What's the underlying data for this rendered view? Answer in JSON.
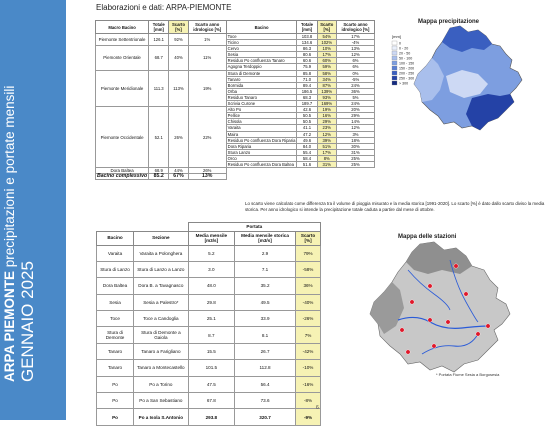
{
  "sidebar": {
    "org": "ARPA PIEMONTE",
    "subtitle": " precipitazioni e portate mensili",
    "month": "GENNAIO 2025",
    "bg_color": "#4a89c8"
  },
  "header": {
    "text": "Elaborazioni e dati: ARPA-PIEMONTE"
  },
  "table1": {
    "headers": [
      "Macro Bacino",
      "Totale [mm]",
      "Scarto [%]",
      "Scarto anno idrologico [%]",
      "Bacino",
      "Totale [mm]",
      "Scarto [%]",
      "Scarto anno idrologico [%]"
    ],
    "macros": [
      {
        "name": "Piemonte Settentrionale",
        "total": "126.1",
        "scarto": "92%",
        "anno": "1%"
      },
      {
        "name": "Piemonte Orientale",
        "total": "68.7",
        "scarto": "40%",
        "anno": "11%"
      },
      {
        "name": "Piemonte Meridionale",
        "total": "111.3",
        "scarto": "113%",
        "anno": "19%"
      },
      {
        "name": "Piemonte Occidentale",
        "total": "52.1",
        "scarto": "26%",
        "anno": "22%"
      },
      {
        "name": "Dora Baltea",
        "total": "68.9",
        "scarto": "44%",
        "anno": "26%"
      },
      {
        "name": "Bacino complessivo",
        "total": "85.2",
        "scarto": "67%",
        "anno": "13%"
      }
    ],
    "basins": [
      {
        "name": "Toce",
        "total": "103.8",
        "scarto": "54%",
        "anno": "17%"
      },
      {
        "name": "Ticino",
        "total": "134.6",
        "scarto": "102%",
        "anno": "-4%"
      },
      {
        "name": "Cervo",
        "total": "86.3",
        "scarto": "10%",
        "anno": "13%"
      },
      {
        "name": "Sesia",
        "total": "80.6",
        "scarto": "17%",
        "anno": "12%"
      },
      {
        "name": "Residuo Po confluenza Tanaro",
        "total": "60.6",
        "scarto": "60%",
        "anno": "6%"
      },
      {
        "name": "Agogna Terdoppio",
        "total": "75.9",
        "scarto": "59%",
        "anno": "6%"
      },
      {
        "name": "Stura di Demonte",
        "total": "85.8",
        "scarto": "58%",
        "anno": "0%"
      },
      {
        "name": "Tanaro",
        "total": "71.0",
        "scarto": "34%",
        "anno": "-5%"
      },
      {
        "name": "Bormida",
        "total": "89.4",
        "scarto": "87%",
        "anno": "24%"
      },
      {
        "name": "Orba",
        "total": "186.5",
        "scarto": "139%",
        "anno": "36%"
      },
      {
        "name": "Residuo Tanaro",
        "total": "68.3",
        "scarto": "93%",
        "anno": "5%"
      },
      {
        "name": "Scrivia Curone",
        "total": "189.7",
        "scarto": "169%",
        "anno": "24%"
      },
      {
        "name": "Alto Po",
        "total": "42.6",
        "scarto": "19%",
        "anno": "20%"
      },
      {
        "name": "Pellice",
        "total": "50.5",
        "scarto": "16%",
        "anno": "29%"
      },
      {
        "name": "Chisola",
        "total": "50.5",
        "scarto": "29%",
        "anno": "14%"
      },
      {
        "name": "Varaita",
        "total": "41.1",
        "scarto": "23%",
        "anno": "12%"
      },
      {
        "name": "Maira",
        "total": "47.2",
        "scarto": "12%",
        "anno": "3%"
      },
      {
        "name": "Residuo Po confluenza Dora Riparia",
        "total": "49.6",
        "scarto": "39%",
        "anno": "18%"
      },
      {
        "name": "Dora Riparia",
        "total": "84.0",
        "scarto": "51%",
        "anno": "30%"
      },
      {
        "name": "Stura Lanzo",
        "total": "55.4",
        "scarto": "17%",
        "anno": "31%"
      },
      {
        "name": "Orco",
        "total": "58.4",
        "scarto": "8%",
        "anno": "25%"
      },
      {
        "name": "Residuo Po confluenza Dora Baltea",
        "total": "51.6",
        "scarto": "31%",
        "anno": "25%"
      }
    ]
  },
  "note": "Lo scarto viene calcolato come differenza tra il volume di pioggia misurato e la media storica [1991-2020]. Lo scarto [%] è dato dallo scarto diviso la media storica. Per anno idrologico si intende la precipitazione totale caduta a partire dal mese di ottobre.",
  "table2": {
    "header_group": "Portata",
    "headers": [
      "Bacino",
      "Sezione",
      "Media mensile [m3/s]",
      "Media mensile storica [m3/s]",
      "Scarto [%]"
    ],
    "rows": [
      {
        "bacino": "Varaita",
        "sezione": "Varaita a Polonghera",
        "media": "5.2",
        "storica": "2.9",
        "scarto": "79%"
      },
      {
        "bacino": "Stura di Lanzo",
        "sezione": "Stura di Lanzo a Lanzo",
        "media": "3.0",
        "storica": "7.1",
        "scarto": "-58%"
      },
      {
        "bacino": "Dora Baltea",
        "sezione": "Dora B. a Tavagnasco",
        "media": "48.0",
        "storica": "35.2",
        "scarto": "36%"
      },
      {
        "bacino": "Sesia",
        "sezione": "Sesia a Palestro*",
        "media": "29.8",
        "storica": "49.5",
        "scarto": "-40%"
      },
      {
        "bacino": "Toce",
        "sezione": "Toce a Candoglia",
        "media": "25.1",
        "storica": "33.9",
        "scarto": "-26%"
      },
      {
        "bacino": "Stura di Demonte",
        "sezione": "Stura di Demonte a Gaiola",
        "media": "8.7",
        "storica": "8.1",
        "scarto": "7%"
      },
      {
        "bacino": "Tanaro",
        "sezione": "Tanaro a Farigliano",
        "media": "15.5",
        "storica": "26.7",
        "scarto": "-42%"
      },
      {
        "bacino": "Tanaro",
        "sezione": "Tanaro a Montecastello",
        "media": "101.5",
        "storica": "112.8",
        "scarto": "-10%"
      },
      {
        "bacino": "Po",
        "sezione": "Po a Torino",
        "media": "47.5",
        "storica": "56.4",
        "scarto": "-16%"
      },
      {
        "bacino": "Po",
        "sezione": "Po a San Sebastiano",
        "media": "67.8",
        "storica": "73.6",
        "scarto": "-8%"
      },
      {
        "bacino": "Po",
        "sezione": "Po a Isola S.Antonio",
        "media": "293.8",
        "storica": "320.7",
        "scarto": "-9%"
      }
    ]
  },
  "map1": {
    "title": "Mappa precipitazione",
    "legend_unit": "[mm]",
    "legend": [
      {
        "label": "0",
        "color": "#ffffff"
      },
      {
        "label": "0 - 20",
        "color": "#eaf0fb"
      },
      {
        "label": "20 - 50",
        "color": "#cdd9f4"
      },
      {
        "label": "50 - 100",
        "color": "#a9bfec"
      },
      {
        "label": "100 - 150",
        "color": "#7d9ee0"
      },
      {
        "label": "150 - 200",
        "color": "#5a7fd2"
      },
      {
        "label": "200 - 250",
        "color": "#3a5fc0"
      },
      {
        "label": "250 - 300",
        "color": "#2442a6"
      },
      {
        "label": "> 300",
        "color": "#142a80"
      }
    ]
  },
  "map2": {
    "title": "Mappa delle stazioni",
    "legend_text": "* Portata Fiume Sesia a Borgosesia"
  },
  "page_number": "6"
}
